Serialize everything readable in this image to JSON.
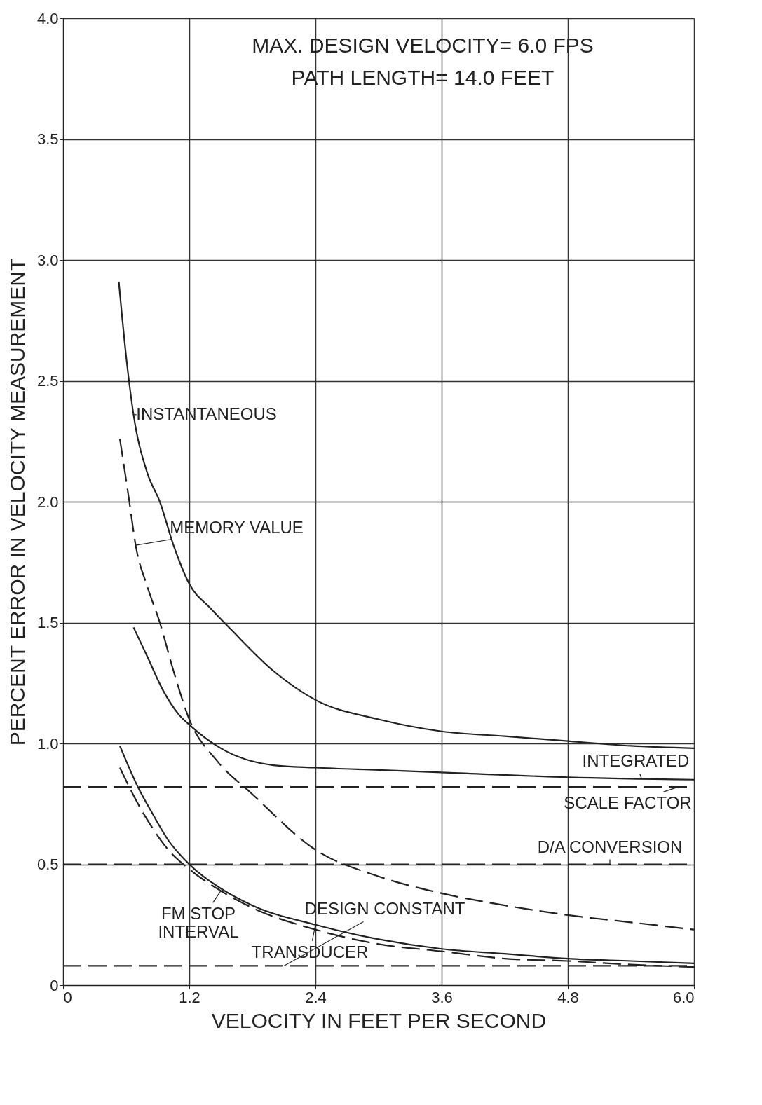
{
  "chart_data": {
    "type": "line",
    "xlabel": "VELOCITY IN FEET PER SECOND",
    "ylabel": "PERCENT ERROR IN VELOCITY MEASUREMENT",
    "xlim": [
      0,
      6.0
    ],
    "xticks": [
      0,
      1.2,
      2.4,
      3.6,
      4.8,
      {
        "value": 6,
        "label": "6.0"
      }
    ],
    "ylim": [
      0,
      4.0
    ],
    "yticks": [
      0,
      0.5,
      {
        "value": 1,
        "label": "1.0"
      },
      1.5,
      {
        "value": 2,
        "label": "2.0"
      },
      2.5,
      {
        "value": 3,
        "label": "3.0"
      },
      3.5,
      {
        "value": 4,
        "label": "4.0"
      }
    ],
    "grid": true,
    "series": [
      {
        "color": "#222222",
        "line_style": "solid",
        "x": [
          0.53,
          0.6,
          0.67,
          0.8,
          0.92,
          1.05,
          1.2,
          1.4,
          1.6,
          2.0,
          2.4,
          3.0,
          3.6,
          4.2,
          4.8,
          5.4,
          6.0
        ],
        "values": [
          2.91,
          2.6,
          2.36,
          2.12,
          2.0,
          1.82,
          1.66,
          1.56,
          1.47,
          1.3,
          1.18,
          1.1,
          1.05,
          1.03,
          1.01,
          0.99,
          0.98
        ]
      },
      {
        "color": "#222222",
        "line_style": "dashed",
        "x": [
          0.54,
          0.63,
          0.69,
          0.8,
          0.92,
          1.05,
          1.2,
          1.46,
          1.8,
          2.4,
          3.0,
          3.6,
          4.2,
          4.8,
          5.4,
          6.0
        ],
        "values": [
          2.26,
          2.0,
          1.82,
          1.65,
          1.5,
          1.3,
          1.1,
          0.93,
          0.79,
          0.56,
          0.45,
          0.38,
          0.33,
          0.29,
          0.26,
          0.23
        ]
      },
      {
        "color": "#222222",
        "line_style": "solid",
        "x": [
          0.67,
          0.8,
          0.95,
          1.1,
          1.22,
          1.5,
          2.0,
          2.4,
          3.0,
          3.6,
          4.8,
          6.0
        ],
        "values": [
          1.48,
          1.36,
          1.22,
          1.12,
          1.07,
          0.98,
          0.91,
          0.9,
          0.89,
          0.88,
          0.86,
          0.85
        ]
      },
      {
        "color": "#222222",
        "line_style": "dashed",
        "x": [
          0,
          6.0
        ],
        "values": [
          0.82,
          0.82
        ]
      },
      {
        "color": "#222222",
        "line_style": "dashed",
        "x": [
          0,
          6.0
        ],
        "values": [
          0.5,
          0.5
        ]
      },
      {
        "color": "#222222",
        "line_style": "solid",
        "x": [
          0.54,
          0.7,
          0.85,
          1.0,
          1.2,
          1.5,
          1.8,
          2.4,
          3.0,
          3.6,
          4.2,
          4.8,
          5.4,
          6.0
        ],
        "values": [
          0.99,
          0.83,
          0.71,
          0.6,
          0.5,
          0.4,
          0.33,
          0.25,
          0.19,
          0.15,
          0.13,
          0.11,
          0.1,
          0.09
        ]
      },
      {
        "color": "#222222",
        "line_style": "dashed",
        "x": [
          0.54,
          0.7,
          0.85,
          1.0,
          1.2,
          1.5,
          1.8,
          2.4,
          3.0,
          3.6,
          4.2,
          4.8,
          5.4,
          6.0
        ],
        "values": [
          0.9,
          0.76,
          0.65,
          0.56,
          0.48,
          0.39,
          0.32,
          0.23,
          0.17,
          0.14,
          0.11,
          0.1,
          0.085,
          0.075
        ]
      },
      {
        "color": "#222222",
        "line_style": "dashed",
        "x": [
          0,
          6.0
        ],
        "values": [
          0.08,
          0.08
        ]
      }
    ],
    "annotations": [
      "MAX. DESIGN VELOCITY= 6.0 FPS",
      "PATH LENGTH= 14.0 FEET",
      {
        "text": "INSTANTANEOUS",
        "x": 0.67,
        "y": 2.36
      },
      {
        "text": "MEMORY VALUE",
        "x": 0.69,
        "y": 1.82
      },
      {
        "text": "INTEGRATED",
        "x": 5.5,
        "y": 0.855
      },
      {
        "text": "SCALE FACTOR",
        "x": 5.85,
        "y": 0.82
      },
      {
        "text": "D/A CONVERSION",
        "x": 5.2,
        "y": 0.5
      },
      {
        "text": "FM STOP\nINTERVAL",
        "x": 1.5,
        "y": 0.39
      },
      {
        "text": "TRANSDUCER",
        "x": 2.4,
        "y": 0.25
      },
      {
        "text": "DESIGN CONSTANT",
        "x": 2.1,
        "y": 0.08
      }
    ]
  }
}
